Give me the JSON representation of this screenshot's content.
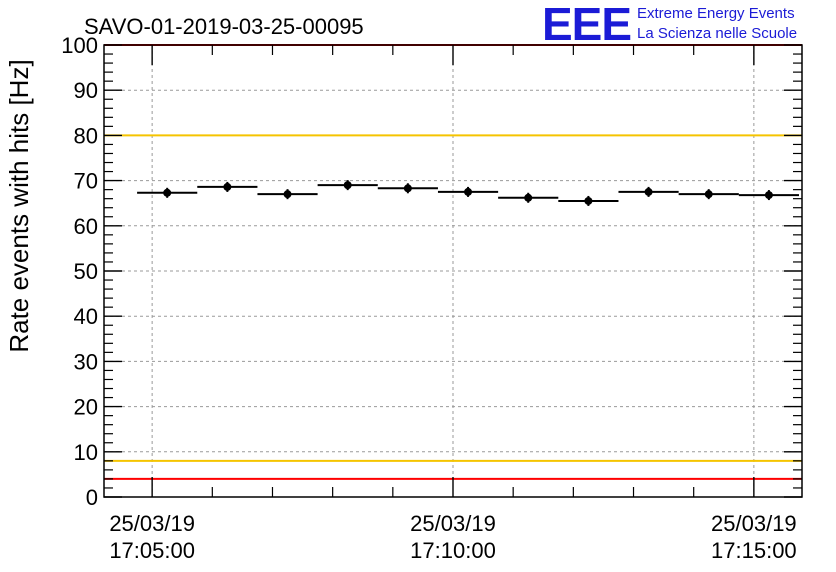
{
  "chart_data": {
    "type": "scatter",
    "title": "SAVO-01-2019-03-25-00095",
    "ylabel": "Rate events with hits [Hz]",
    "xlabel": "",
    "ylim": [
      0,
      100
    ],
    "xlim_minutes": [
      -0.8,
      10.8
    ],
    "grid": true,
    "y_ticks": [
      0,
      10,
      20,
      30,
      40,
      50,
      60,
      70,
      80,
      90,
      100
    ],
    "x_ticks": [
      {
        "minute": 0,
        "date": "25/03/19",
        "time": "17:05:00"
      },
      {
        "minute": 5,
        "date": "25/03/19",
        "time": "17:10:00"
      },
      {
        "minute": 10,
        "date": "25/03/19",
        "time": "17:15:00"
      }
    ],
    "bin_width_minutes": 1,
    "series": [
      {
        "name": "rate",
        "x": [
          0.25,
          1.25,
          2.25,
          3.25,
          4.25,
          5.25,
          6.25,
          7.25,
          8.25,
          9.25,
          10.25
        ],
        "y": [
          67.3,
          68.6,
          67.0,
          69.0,
          68.3,
          67.5,
          66.2,
          65.5,
          67.5,
          67.0,
          66.8
        ]
      }
    ],
    "reference_lines": [
      {
        "y": 100,
        "color": "#ff0000"
      },
      {
        "y": 80,
        "color": "#f5c400"
      },
      {
        "y": 8,
        "color": "#f5c400"
      },
      {
        "y": 4,
        "color": "#ff0000"
      }
    ]
  },
  "logo": {
    "letters": "EEE",
    "line1": "Extreme Energy Events",
    "line2": "La Scienza nelle Scuole",
    "color": "#1b1bd6"
  }
}
